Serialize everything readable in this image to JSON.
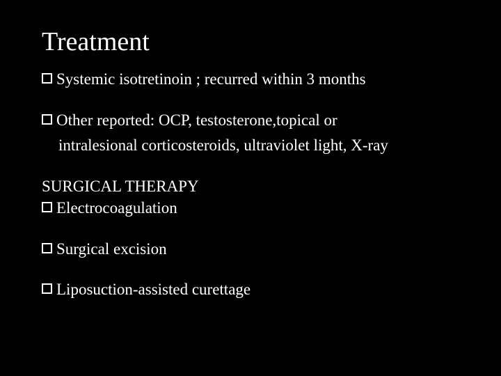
{
  "slide": {
    "title": "Treatment",
    "title_fontsize": 38,
    "body_fontsize": 23,
    "background_color": "#000000",
    "text_color": "#ffffff",
    "corner_radius": 36,
    "bullet_style": "hollow-square",
    "items": [
      {
        "type": "bullet",
        "text": "Systemic isotretinoin  ; recurred within 3 months"
      },
      {
        "type": "spacer"
      },
      {
        "type": "bullet",
        "text": "Other reported: OCP, testosterone,topical or"
      },
      {
        "type": "continuation",
        "text": "intralesional corticosteroids, ultraviolet light, X-ray"
      },
      {
        "type": "spacer"
      },
      {
        "type": "subheading",
        "text": "SURGICAL THERAPY"
      },
      {
        "type": "bullet",
        "text": "Electrocoagulation"
      },
      {
        "type": "spacer"
      },
      {
        "type": "bullet",
        "text": "Surgical excision"
      },
      {
        "type": "spacer"
      },
      {
        "type": "bullet",
        "text": "Liposuction-assisted curettage"
      }
    ]
  }
}
